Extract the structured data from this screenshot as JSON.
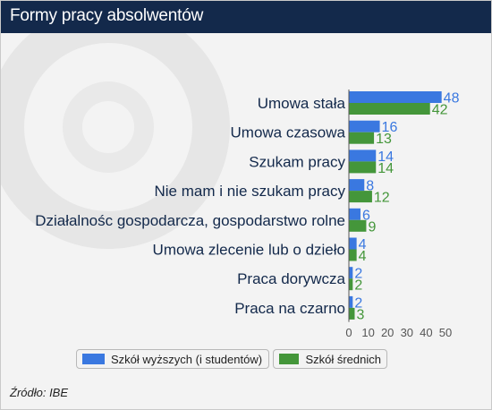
{
  "header": {
    "title": "Formy pracy absolwentów"
  },
  "source": "Źródło: IBE",
  "colors": {
    "header_bg": "#13294b",
    "series1": "#3a78e0",
    "series2": "#44963a",
    "label_text": "#13294b"
  },
  "chart_data": {
    "type": "bar",
    "orientation": "horizontal",
    "title": "",
    "xlabel": "",
    "ylabel": "",
    "categories": [
      "Umowa stała",
      "Umowa czasowa",
      "Szukam pracy",
      "Nie mam i nie szukam pracy",
      "Działalnośc gospodarcza, gospodarstwo rolne",
      "Umowa zlecenie lub o dzieło",
      "Praca dorywcza",
      "Praca na czarno"
    ],
    "series": [
      {
        "name": "Szkół wyższych (i studentów)",
        "values": [
          48,
          16,
          14,
          8,
          6,
          4,
          2,
          2
        ],
        "color": "#3a78e0"
      },
      {
        "name": "Szkół średnich",
        "values": [
          42,
          13,
          14,
          12,
          9,
          4,
          2,
          3
        ],
        "color": "#44963a"
      }
    ],
    "xlim": [
      0,
      50
    ],
    "xticks": [
      "0",
      "10",
      "20",
      "30",
      "40",
      "50"
    ],
    "grid": false,
    "data_labels": true,
    "legend_position": "bottom"
  }
}
